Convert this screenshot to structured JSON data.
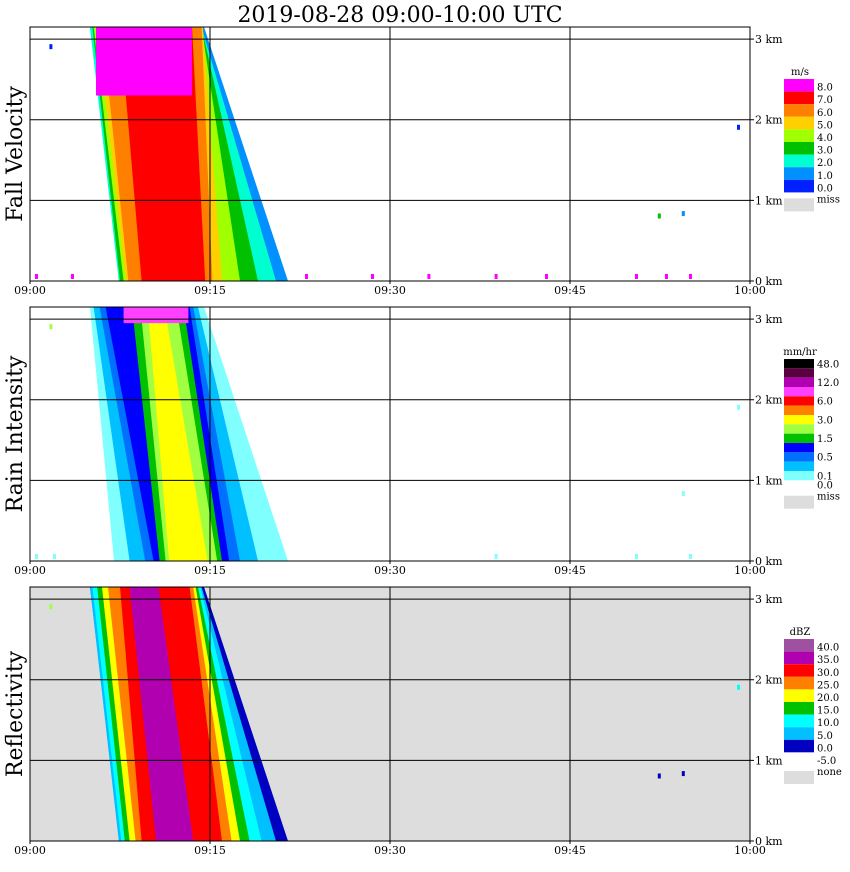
{
  "title": "2019-08-28   09:00-10:00 UTC",
  "chart_data": [
    {
      "type": "heatmap",
      "ylabel": "Fall Velocity",
      "unit": "m/s",
      "x_ticks": [
        "09:00",
        "09:15",
        "09:30",
        "09:45",
        "10:00"
      ],
      "x_range_minutes": [
        0,
        60
      ],
      "y_ticks": [
        "0 km",
        "1 km",
        "2 km",
        "3 km"
      ],
      "y_range_km": [
        0,
        3.15
      ],
      "grid": true,
      "background_color": "#ffffff",
      "legend": [
        {
          "label": "8.0",
          "color": "#ff00ff"
        },
        {
          "label": "7.0",
          "color": "#ff0000"
        },
        {
          "label": "6.0",
          "color": "#ff8000"
        },
        {
          "label": "5.0",
          "color": "#ffd000"
        },
        {
          "label": "4.0",
          "color": "#a0ff00"
        },
        {
          "label": "3.0",
          "color": "#00c000"
        },
        {
          "label": "2.0",
          "color": "#00ffd0"
        },
        {
          "label": "1.0",
          "color": "#0090ff"
        },
        {
          "label": "0.0",
          "color": "#0020ff"
        },
        {
          "label": "miss",
          "color": "#dddddd"
        }
      ],
      "event_bands": [
        {
          "t0_top": 5.0,
          "t0_bot": 7.5,
          "t1_top": 14.5,
          "t1_bot": 21.5,
          "color": "#0090ff"
        },
        {
          "t0_top": 5.0,
          "t0_bot": 7.4,
          "t1_top": 14.3,
          "t1_bot": 20.5,
          "color": "#00ffd0"
        },
        {
          "t0_top": 5.2,
          "t0_bot": 7.5,
          "t1_top": 14.3,
          "t1_bot": 19.0,
          "color": "#00c000"
        },
        {
          "t0_top": 5.3,
          "t0_bot": 7.8,
          "t1_top": 14.3,
          "t1_bot": 17.5,
          "color": "#a0ff00"
        },
        {
          "t0_top": 5.6,
          "t0_bot": 8.0,
          "t1_top": 14.4,
          "t1_bot": 16.0,
          "color": "#ffd000"
        },
        {
          "t0_top": 6.0,
          "t0_bot": 8.2,
          "t1_top": 14.3,
          "t1_bot": 15.2,
          "color": "#ff8000"
        },
        {
          "t0_top": 7.5,
          "t0_bot": 9.3,
          "t1_top": 13.5,
          "t1_bot": 14.6,
          "color": "#ff0000"
        }
      ],
      "top_layer": {
        "t0": 5.5,
        "t1": 13.5,
        "km_from": 2.3,
        "km_to": 3.15,
        "color": "#ff00ff"
      },
      "speckles": [
        {
          "t": 1.7,
          "km": 2.9,
          "color": "#0020ff"
        },
        {
          "t": 59.0,
          "km": 1.9,
          "color": "#0020ff"
        },
        {
          "t": 52.4,
          "km": 0.8,
          "color": "#00c000"
        },
        {
          "t": 54.4,
          "km": 0.83,
          "color": "#0090ff"
        },
        {
          "t": 0.5,
          "km": 0.05,
          "color": "#ff00ff"
        },
        {
          "t": 3.5,
          "km": 0.05,
          "color": "#ff00ff"
        },
        {
          "t": 23.0,
          "km": 0.05,
          "color": "#ff00ff"
        },
        {
          "t": 28.5,
          "km": 0.05,
          "color": "#ff00ff"
        },
        {
          "t": 33.2,
          "km": 0.05,
          "color": "#ff00ff"
        },
        {
          "t": 38.8,
          "km": 0.05,
          "color": "#ff00ff"
        },
        {
          "t": 43.0,
          "km": 0.05,
          "color": "#ff00ff"
        },
        {
          "t": 50.5,
          "km": 0.05,
          "color": "#ff00ff"
        },
        {
          "t": 53.0,
          "km": 0.05,
          "color": "#ff00ff"
        },
        {
          "t": 55.0,
          "km": 0.05,
          "color": "#ff00ff"
        }
      ]
    },
    {
      "type": "heatmap",
      "ylabel": "Rain Intensity",
      "unit": "mm/hr",
      "x_ticks": [
        "09:00",
        "09:15",
        "09:30",
        "09:45",
        "10:00"
      ],
      "x_range_minutes": [
        0,
        60
      ],
      "y_ticks": [
        "0 km",
        "1 km",
        "2 km",
        "3 km"
      ],
      "y_range_km": [
        0,
        3.15
      ],
      "grid": true,
      "background_color": "#ffffff",
      "legend": [
        {
          "label": "48.0",
          "color": "#000000"
        },
        {
          "label": "",
          "color": "#5a0040"
        },
        {
          "label": "12.0",
          "color": "#b000b0"
        },
        {
          "label": "",
          "color": "#ff40ff"
        },
        {
          "label": "6.0",
          "color": "#ff0000"
        },
        {
          "label": "",
          "color": "#ff8000"
        },
        {
          "label": "3.0",
          "color": "#ffff00"
        },
        {
          "label": "",
          "color": "#a0ff40"
        },
        {
          "label": "1.5",
          "color": "#00c000"
        },
        {
          "label": "",
          "color": "#0000ff"
        },
        {
          "label": "0.5",
          "color": "#0070ff"
        },
        {
          "label": "",
          "color": "#00c0ff"
        },
        {
          "label": "0.1",
          "color": "#80ffff"
        },
        {
          "label": "0.0",
          "color": "#ffffff"
        },
        {
          "label": "miss",
          "color": "#dddddd"
        }
      ],
      "event_bands": [
        {
          "t0_top": 5.0,
          "t0_bot": 7.0,
          "t1_top": 14.5,
          "t1_bot": 21.5,
          "color": "#80ffff"
        },
        {
          "t0_top": 5.3,
          "t0_bot": 8.3,
          "t1_top": 14.0,
          "t1_bot": 19.0,
          "color": "#00c0ff"
        },
        {
          "t0_top": 5.8,
          "t0_bot": 9.6,
          "t1_top": 13.6,
          "t1_bot": 17.5,
          "color": "#0070ff"
        },
        {
          "t0_top": 6.3,
          "t0_bot": 10.3,
          "t1_top": 13.3,
          "t1_bot": 16.6,
          "color": "#0000ff"
        },
        {
          "t0_top": 8.5,
          "t0_bot": 10.8,
          "t1_top": 12.8,
          "t1_bot": 16.0,
          "color": "#00c000"
        },
        {
          "t0_top": 9.2,
          "t0_bot": 11.3,
          "t1_top": 12.2,
          "t1_bot": 15.6,
          "color": "#a0ff40"
        },
        {
          "t0_top": 9.8,
          "t0_bot": 11.6,
          "t1_top": 11.2,
          "t1_bot": 14.8,
          "color": "#ffff00"
        }
      ],
      "top_layer": {
        "t0": 7.8,
        "t1": 13.2,
        "km_from": 2.95,
        "km_to": 3.15,
        "color": "#ff40ff"
      },
      "speckles": [
        {
          "t": 1.7,
          "km": 2.9,
          "color": "#a0ff40"
        },
        {
          "t": 59.0,
          "km": 1.9,
          "color": "#80ffff"
        },
        {
          "t": 54.4,
          "km": 0.83,
          "color": "#80ffff"
        },
        {
          "t": 0.5,
          "km": 0.05,
          "color": "#80ffff"
        },
        {
          "t": 2.0,
          "km": 0.05,
          "color": "#80ffff"
        },
        {
          "t": 38.8,
          "km": 0.05,
          "color": "#80ffff"
        },
        {
          "t": 50.5,
          "km": 0.05,
          "color": "#80ffff"
        },
        {
          "t": 55.0,
          "km": 0.05,
          "color": "#80ffff"
        }
      ]
    },
    {
      "type": "heatmap",
      "ylabel": "Reflectivity",
      "unit": "dBZ",
      "x_ticks": [
        "09:00",
        "09:15",
        "09:30",
        "09:45",
        "10:00"
      ],
      "x_range_minutes": [
        0,
        60
      ],
      "y_ticks": [
        "0 km",
        "1 km",
        "2 km",
        "3 km"
      ],
      "y_range_km": [
        0,
        3.15
      ],
      "grid": true,
      "background_color": "#dddddd",
      "legend": [
        {
          "label": "40.0",
          "color": "#a050a0"
        },
        {
          "label": "35.0",
          "color": "#b000b0"
        },
        {
          "label": "30.0",
          "color": "#ff0000"
        },
        {
          "label": "25.0",
          "color": "#ff8000"
        },
        {
          "label": "20.0",
          "color": "#ffff00"
        },
        {
          "label": "15.0",
          "color": "#00c000"
        },
        {
          "label": "10.0",
          "color": "#00ffff"
        },
        {
          "label": "5.0",
          "color": "#00c0ff"
        },
        {
          "label": "0.0",
          "color": "#0000c0"
        },
        {
          "label": "-5.0",
          "color": "#ffffff"
        },
        {
          "label": "none",
          "color": "#dddddd"
        }
      ],
      "event_bands": [
        {
          "t0_top": 5.0,
          "t0_bot": 7.5,
          "t1_top": 14.5,
          "t1_bot": 21.5,
          "color": "#0000c0"
        },
        {
          "t0_top": 5.0,
          "t0_bot": 7.4,
          "t1_top": 14.3,
          "t1_bot": 20.5,
          "color": "#00c0ff"
        },
        {
          "t0_top": 5.2,
          "t0_bot": 7.6,
          "t1_top": 14.2,
          "t1_bot": 19.3,
          "color": "#00ffff"
        },
        {
          "t0_top": 5.6,
          "t0_bot": 7.9,
          "t1_top": 14.0,
          "t1_bot": 18.3,
          "color": "#00c000"
        },
        {
          "t0_top": 6.0,
          "t0_bot": 8.3,
          "t1_top": 13.8,
          "t1_bot": 17.5,
          "color": "#ffff00"
        },
        {
          "t0_top": 6.5,
          "t0_bot": 8.8,
          "t1_top": 13.6,
          "t1_bot": 16.8,
          "color": "#ff8000"
        },
        {
          "t0_top": 7.5,
          "t0_bot": 9.3,
          "t1_top": 13.3,
          "t1_bot": 16.0,
          "color": "#ff0000"
        },
        {
          "t0_top": 8.3,
          "t0_bot": 10.5,
          "t1_top": 10.7,
          "t1_bot": 13.6,
          "color": "#b000b0"
        }
      ],
      "top_layer": null,
      "speckles": [
        {
          "t": 1.7,
          "km": 2.9,
          "color": "#a0ff40"
        },
        {
          "t": 59.0,
          "km": 1.9,
          "color": "#00ffff"
        },
        {
          "t": 52.4,
          "km": 0.8,
          "color": "#0000c0"
        },
        {
          "t": 54.4,
          "km": 0.83,
          "color": "#0000c0"
        }
      ]
    }
  ]
}
